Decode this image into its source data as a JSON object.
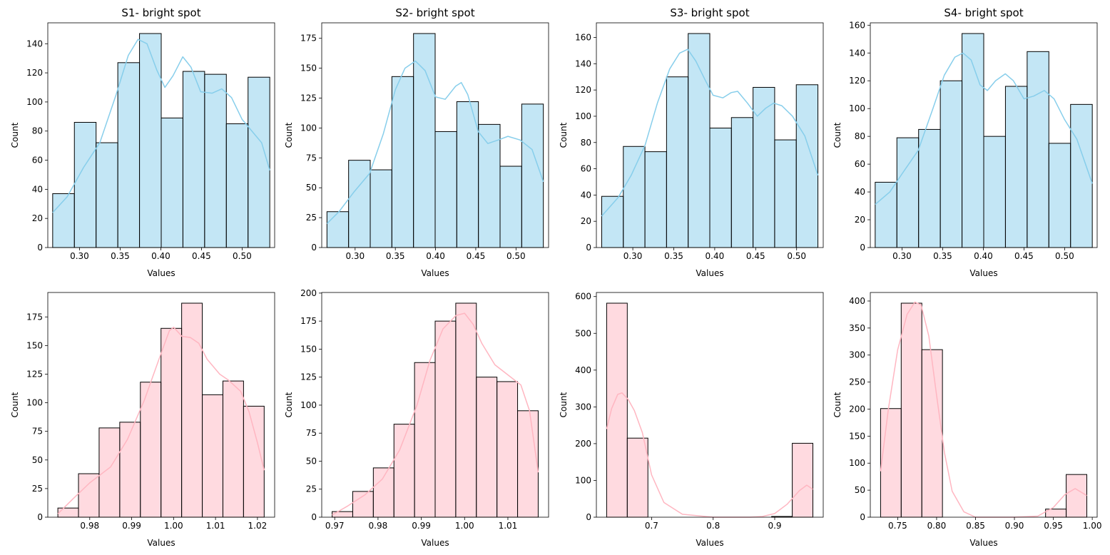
{
  "figure": {
    "colors": {
      "top": "#87ceeb",
      "bottom": "#ffb6c1",
      "bar_edge": "#000000"
    }
  },
  "chart_data": [
    {
      "type": "bar",
      "subtype": "histogram",
      "color_key": "top",
      "title": "S1- bright spot",
      "xlabel": "Values",
      "ylabel": "Count",
      "bin_edges": [
        0.267,
        0.2937,
        0.3204,
        0.3471,
        0.3738,
        0.4005,
        0.4272,
        0.4539,
        0.4806,
        0.5073,
        0.534
      ],
      "values": [
        37,
        86,
        72,
        127,
        147,
        89,
        121,
        119,
        85,
        117
      ],
      "kde": [
        [
          0.267,
          24
        ],
        [
          0.285,
          35
        ],
        [
          0.305,
          55
        ],
        [
          0.325,
          72
        ],
        [
          0.345,
          105
        ],
        [
          0.36,
          132
        ],
        [
          0.372,
          143
        ],
        [
          0.383,
          140
        ],
        [
          0.395,
          122
        ],
        [
          0.405,
          110
        ],
        [
          0.415,
          118
        ],
        [
          0.427,
          131
        ],
        [
          0.437,
          124
        ],
        [
          0.449,
          107
        ],
        [
          0.463,
          106
        ],
        [
          0.475,
          109
        ],
        [
          0.487,
          103
        ],
        [
          0.5,
          88
        ],
        [
          0.512,
          80
        ],
        [
          0.524,
          72
        ],
        [
          0.534,
          53
        ]
      ],
      "xlim": [
        0.261,
        0.54
      ],
      "ylim": [
        0,
        154.35
      ],
      "xticks": [
        0.3,
        0.35,
        0.4,
        0.45,
        0.5
      ],
      "xtick_labels": [
        "0.30",
        "0.35",
        "0.40",
        "0.45",
        "0.50"
      ],
      "yticks": [
        0,
        20,
        40,
        60,
        80,
        100,
        120,
        140
      ],
      "ytick_labels": [
        "0",
        "20",
        "40",
        "60",
        "80",
        "100",
        "120",
        "140"
      ]
    },
    {
      "type": "bar",
      "subtype": "histogram",
      "color_key": "top",
      "title": "S2- bright spot",
      "xlabel": "Values",
      "ylabel": "Count",
      "bin_edges": [
        0.265,
        0.2919,
        0.3188,
        0.3457,
        0.3726,
        0.3995,
        0.4264,
        0.4533,
        0.4802,
        0.5071,
        0.534
      ],
      "values": [
        30,
        73,
        65,
        143,
        179,
        97,
        122,
        103,
        68,
        120
      ],
      "kde": [
        [
          0.265,
          20
        ],
        [
          0.28,
          30
        ],
        [
          0.298,
          46
        ],
        [
          0.318,
          62
        ],
        [
          0.335,
          95
        ],
        [
          0.35,
          132
        ],
        [
          0.362,
          150
        ],
        [
          0.375,
          156
        ],
        [
          0.387,
          148
        ],
        [
          0.4,
          126
        ],
        [
          0.412,
          124
        ],
        [
          0.425,
          135
        ],
        [
          0.432,
          138
        ],
        [
          0.44,
          128
        ],
        [
          0.453,
          97
        ],
        [
          0.465,
          87
        ],
        [
          0.478,
          90
        ],
        [
          0.49,
          93
        ],
        [
          0.505,
          90
        ],
        [
          0.52,
          82
        ],
        [
          0.534,
          55
        ]
      ],
      "xlim": [
        0.2585,
        0.5405
      ],
      "ylim": [
        0,
        187.95
      ],
      "xticks": [
        0.3,
        0.35,
        0.4,
        0.45,
        0.5
      ],
      "xtick_labels": [
        "0.30",
        "0.35",
        "0.40",
        "0.45",
        "0.50"
      ],
      "yticks": [
        0,
        25,
        50,
        75,
        100,
        125,
        150,
        175
      ],
      "ytick_labels": [
        "0",
        "25",
        "50",
        "75",
        "100",
        "125",
        "150",
        "175"
      ]
    },
    {
      "type": "bar",
      "subtype": "histogram",
      "color_key": "top",
      "title": "S3- bright spot",
      "xlabel": "Values",
      "ylabel": "Count",
      "bin_edges": [
        0.262,
        0.2884,
        0.3148,
        0.3412,
        0.3676,
        0.394,
        0.4204,
        0.4468,
        0.4732,
        0.4996,
        0.526
      ],
      "values": [
        39,
        77,
        73,
        130,
        163,
        91,
        99,
        122,
        82,
        124
      ],
      "kde": [
        [
          0.262,
          24
        ],
        [
          0.282,
          38
        ],
        [
          0.298,
          55
        ],
        [
          0.315,
          78
        ],
        [
          0.33,
          110
        ],
        [
          0.345,
          136
        ],
        [
          0.357,
          148
        ],
        [
          0.367,
          151
        ],
        [
          0.377,
          142
        ],
        [
          0.388,
          128
        ],
        [
          0.398,
          116
        ],
        [
          0.41,
          114
        ],
        [
          0.42,
          118
        ],
        [
          0.428,
          119
        ],
        [
          0.44,
          110
        ],
        [
          0.452,
          100
        ],
        [
          0.462,
          106
        ],
        [
          0.472,
          110
        ],
        [
          0.482,
          108
        ],
        [
          0.495,
          100
        ],
        [
          0.51,
          85
        ],
        [
          0.526,
          55
        ]
      ],
      "xlim": [
        0.2555,
        0.5325
      ],
      "ylim": [
        0,
        171.15
      ],
      "xticks": [
        0.3,
        0.35,
        0.4,
        0.45,
        0.5
      ],
      "xtick_labels": [
        "0.30",
        "0.35",
        "0.40",
        "0.45",
        "0.50"
      ],
      "yticks": [
        0,
        20,
        40,
        60,
        80,
        100,
        120,
        140,
        160
      ],
      "ytick_labels": [
        "0",
        "20",
        "40",
        "60",
        "80",
        "100",
        "120",
        "140",
        "160"
      ]
    },
    {
      "type": "bar",
      "subtype": "histogram",
      "color_key": "top",
      "title": "S4- bright spot",
      "xlabel": "Values",
      "ylabel": "Count",
      "bin_edges": [
        0.267,
        0.2937,
        0.3204,
        0.3471,
        0.3738,
        0.4005,
        0.4272,
        0.4539,
        0.4806,
        0.5073,
        0.534
      ],
      "values": [
        47,
        79,
        85,
        120,
        154,
        80,
        116,
        141,
        75,
        103
      ],
      "kde": [
        [
          0.267,
          31
        ],
        [
          0.285,
          40
        ],
        [
          0.3,
          53
        ],
        [
          0.32,
          70
        ],
        [
          0.338,
          100
        ],
        [
          0.352,
          124
        ],
        [
          0.365,
          137
        ],
        [
          0.375,
          140
        ],
        [
          0.385,
          135
        ],
        [
          0.396,
          117
        ],
        [
          0.405,
          113
        ],
        [
          0.415,
          120
        ],
        [
          0.427,
          125
        ],
        [
          0.437,
          120
        ],
        [
          0.45,
          107
        ],
        [
          0.462,
          109
        ],
        [
          0.475,
          113
        ],
        [
          0.487,
          107
        ],
        [
          0.5,
          92
        ],
        [
          0.515,
          78
        ],
        [
          0.534,
          46
        ]
      ],
      "xlim": [
        0.261,
        0.54
      ],
      "ylim": [
        0,
        161.7
      ],
      "xticks": [
        0.3,
        0.35,
        0.4,
        0.45,
        0.5
      ],
      "xtick_labels": [
        "0.30",
        "0.35",
        "0.40",
        "0.45",
        "0.50"
      ],
      "yticks": [
        0,
        20,
        40,
        60,
        80,
        100,
        120,
        140,
        160
      ],
      "ytick_labels": [
        "0",
        "20",
        "40",
        "60",
        "80",
        "100",
        "120",
        "140",
        "160"
      ]
    },
    {
      "type": "bar",
      "subtype": "histogram",
      "color_key": "bottom",
      "title": "",
      "xlabel": "Values",
      "ylabel": "Count",
      "bin_edges": [
        0.9724,
        0.97732,
        0.98224,
        0.98716,
        0.99208,
        0.997,
        1.00192,
        1.00684,
        1.01176,
        1.01668,
        1.0216
      ],
      "values": [
        8,
        38,
        78,
        83,
        118,
        165,
        187,
        107,
        119,
        97
      ],
      "kde": [
        [
          0.9724,
          3
        ],
        [
          0.976,
          16
        ],
        [
          0.98,
          30
        ],
        [
          0.985,
          44
        ],
        [
          0.989,
          68
        ],
        [
          0.993,
          102
        ],
        [
          0.997,
          143
        ],
        [
          0.999,
          163
        ],
        [
          1.0,
          166
        ],
        [
          1.002,
          158
        ],
        [
          1.004,
          157
        ],
        [
          1.006,
          152
        ],
        [
          1.008,
          138
        ],
        [
          1.011,
          125
        ],
        [
          1.013,
          120
        ],
        [
          1.016,
          110
        ],
        [
          1.018,
          92
        ],
        [
          1.02,
          65
        ],
        [
          1.0216,
          41
        ]
      ],
      "xlim": [
        0.97,
        1.0241
      ],
      "ylim": [
        0,
        196.35
      ],
      "xticks": [
        0.98,
        0.99,
        1.0,
        1.01,
        1.02
      ],
      "xtick_labels": [
        "0.98",
        "0.99",
        "1.00",
        "1.01",
        "1.02"
      ],
      "yticks": [
        0,
        25,
        50,
        75,
        100,
        125,
        150,
        175
      ],
      "ytick_labels": [
        "0",
        "25",
        "50",
        "75",
        "100",
        "125",
        "150",
        "175"
      ]
    },
    {
      "type": "bar",
      "subtype": "histogram",
      "color_key": "bottom",
      "title": "",
      "xlabel": "Values",
      "ylabel": "Count",
      "bin_edges": [
        0.9694,
        0.97416,
        0.97892,
        0.98368,
        0.98844,
        0.9932,
        0.99796,
        1.00272,
        1.00748,
        1.01224,
        1.017
      ],
      "values": [
        5,
        23,
        44,
        83,
        138,
        175,
        191,
        125,
        121,
        95
      ],
      "kde": [
        [
          0.9694,
          2
        ],
        [
          0.973,
          10
        ],
        [
          0.977,
          20
        ],
        [
          0.981,
          34
        ],
        [
          0.985,
          60
        ],
        [
          0.989,
          100
        ],
        [
          0.992,
          140
        ],
        [
          0.995,
          168
        ],
        [
          0.998,
          180
        ],
        [
          1.0,
          182
        ],
        [
          1.002,
          172
        ],
        [
          1.004,
          155
        ],
        [
          1.007,
          136
        ],
        [
          1.01,
          127
        ],
        [
          1.013,
          118
        ],
        [
          1.015,
          95
        ],
        [
          1.017,
          40
        ]
      ],
      "xlim": [
        0.967,
        1.0194
      ],
      "ylim": [
        0,
        200.55
      ],
      "xticks": [
        0.97,
        0.98,
        0.99,
        1.0,
        1.01
      ],
      "xtick_labels": [
        "0.97",
        "0.98",
        "0.99",
        "1.00",
        "1.01"
      ],
      "yticks": [
        0,
        25,
        50,
        75,
        100,
        125,
        150,
        175,
        200
      ],
      "ytick_labels": [
        "0",
        "25",
        "50",
        "75",
        "100",
        "125",
        "150",
        "175",
        "200"
      ]
    },
    {
      "type": "bar",
      "subtype": "histogram",
      "color_key": "bottom",
      "title": "",
      "xlabel": "Values",
      "ylabel": "Count",
      "bin_edges": [
        0.627,
        0.6605,
        0.694,
        0.7275,
        0.761,
        0.7945,
        0.828,
        0.8615,
        0.895,
        0.9285,
        0.962
      ],
      "values": [
        582,
        215,
        0,
        0,
        0,
        0,
        0,
        0,
        2,
        201
      ],
      "kde": [
        [
          0.627,
          240
        ],
        [
          0.635,
          295
        ],
        [
          0.645,
          334
        ],
        [
          0.652,
          338
        ],
        [
          0.662,
          320
        ],
        [
          0.672,
          290
        ],
        [
          0.685,
          230
        ],
        [
          0.7,
          115
        ],
        [
          0.72,
          40
        ],
        [
          0.75,
          8
        ],
        [
          0.8,
          0
        ],
        [
          0.86,
          0
        ],
        [
          0.88,
          2
        ],
        [
          0.9,
          10
        ],
        [
          0.92,
          35
        ],
        [
          0.94,
          72
        ],
        [
          0.952,
          87
        ],
        [
          0.962,
          76
        ]
      ],
      "xlim": [
        0.6103,
        0.9788
      ],
      "ylim": [
        0,
        611.1
      ],
      "xticks": [
        0.7,
        0.8,
        0.9
      ],
      "xtick_labels": [
        "0.7",
        "0.8",
        "0.9"
      ],
      "yticks": [
        0,
        100,
        200,
        300,
        400,
        500,
        600
      ],
      "ytick_labels": [
        "0",
        "100",
        "200",
        "300",
        "400",
        "500",
        "600"
      ]
    },
    {
      "type": "bar",
      "subtype": "histogram",
      "color_key": "bottom",
      "title": "",
      "xlabel": "Values",
      "ylabel": "Count",
      "bin_edges": [
        0.728,
        0.7545,
        0.781,
        0.8075,
        0.834,
        0.8605,
        0.887,
        0.9135,
        0.94,
        0.9665,
        0.993
      ],
      "values": [
        201,
        396,
        310,
        0,
        0,
        0,
        0,
        0,
        15,
        79
      ],
      "kde": [
        [
          0.728,
          85
        ],
        [
          0.738,
          200
        ],
        [
          0.75,
          310
        ],
        [
          0.762,
          375
        ],
        [
          0.772,
          398
        ],
        [
          0.78,
          393
        ],
        [
          0.79,
          335
        ],
        [
          0.8,
          225
        ],
        [
          0.81,
          120
        ],
        [
          0.82,
          48
        ],
        [
          0.835,
          10
        ],
        [
          0.85,
          0
        ],
        [
          0.9,
          0
        ],
        [
          0.93,
          2
        ],
        [
          0.95,
          18
        ],
        [
          0.965,
          42
        ],
        [
          0.978,
          53
        ],
        [
          0.993,
          40
        ]
      ],
      "xlim": [
        0.7148,
        1.0063
      ],
      "ylim": [
        0,
        415.8
      ],
      "xticks": [
        0.75,
        0.8,
        0.85,
        0.9,
        0.95,
        1.0
      ],
      "xtick_labels": [
        "0.75",
        "0.80",
        "0.85",
        "0.90",
        "0.95",
        "1.00"
      ],
      "yticks": [
        0,
        50,
        100,
        150,
        200,
        250,
        300,
        350,
        400
      ],
      "ytick_labels": [
        "0",
        "50",
        "100",
        "150",
        "200",
        "250",
        "300",
        "350",
        "400"
      ]
    }
  ]
}
